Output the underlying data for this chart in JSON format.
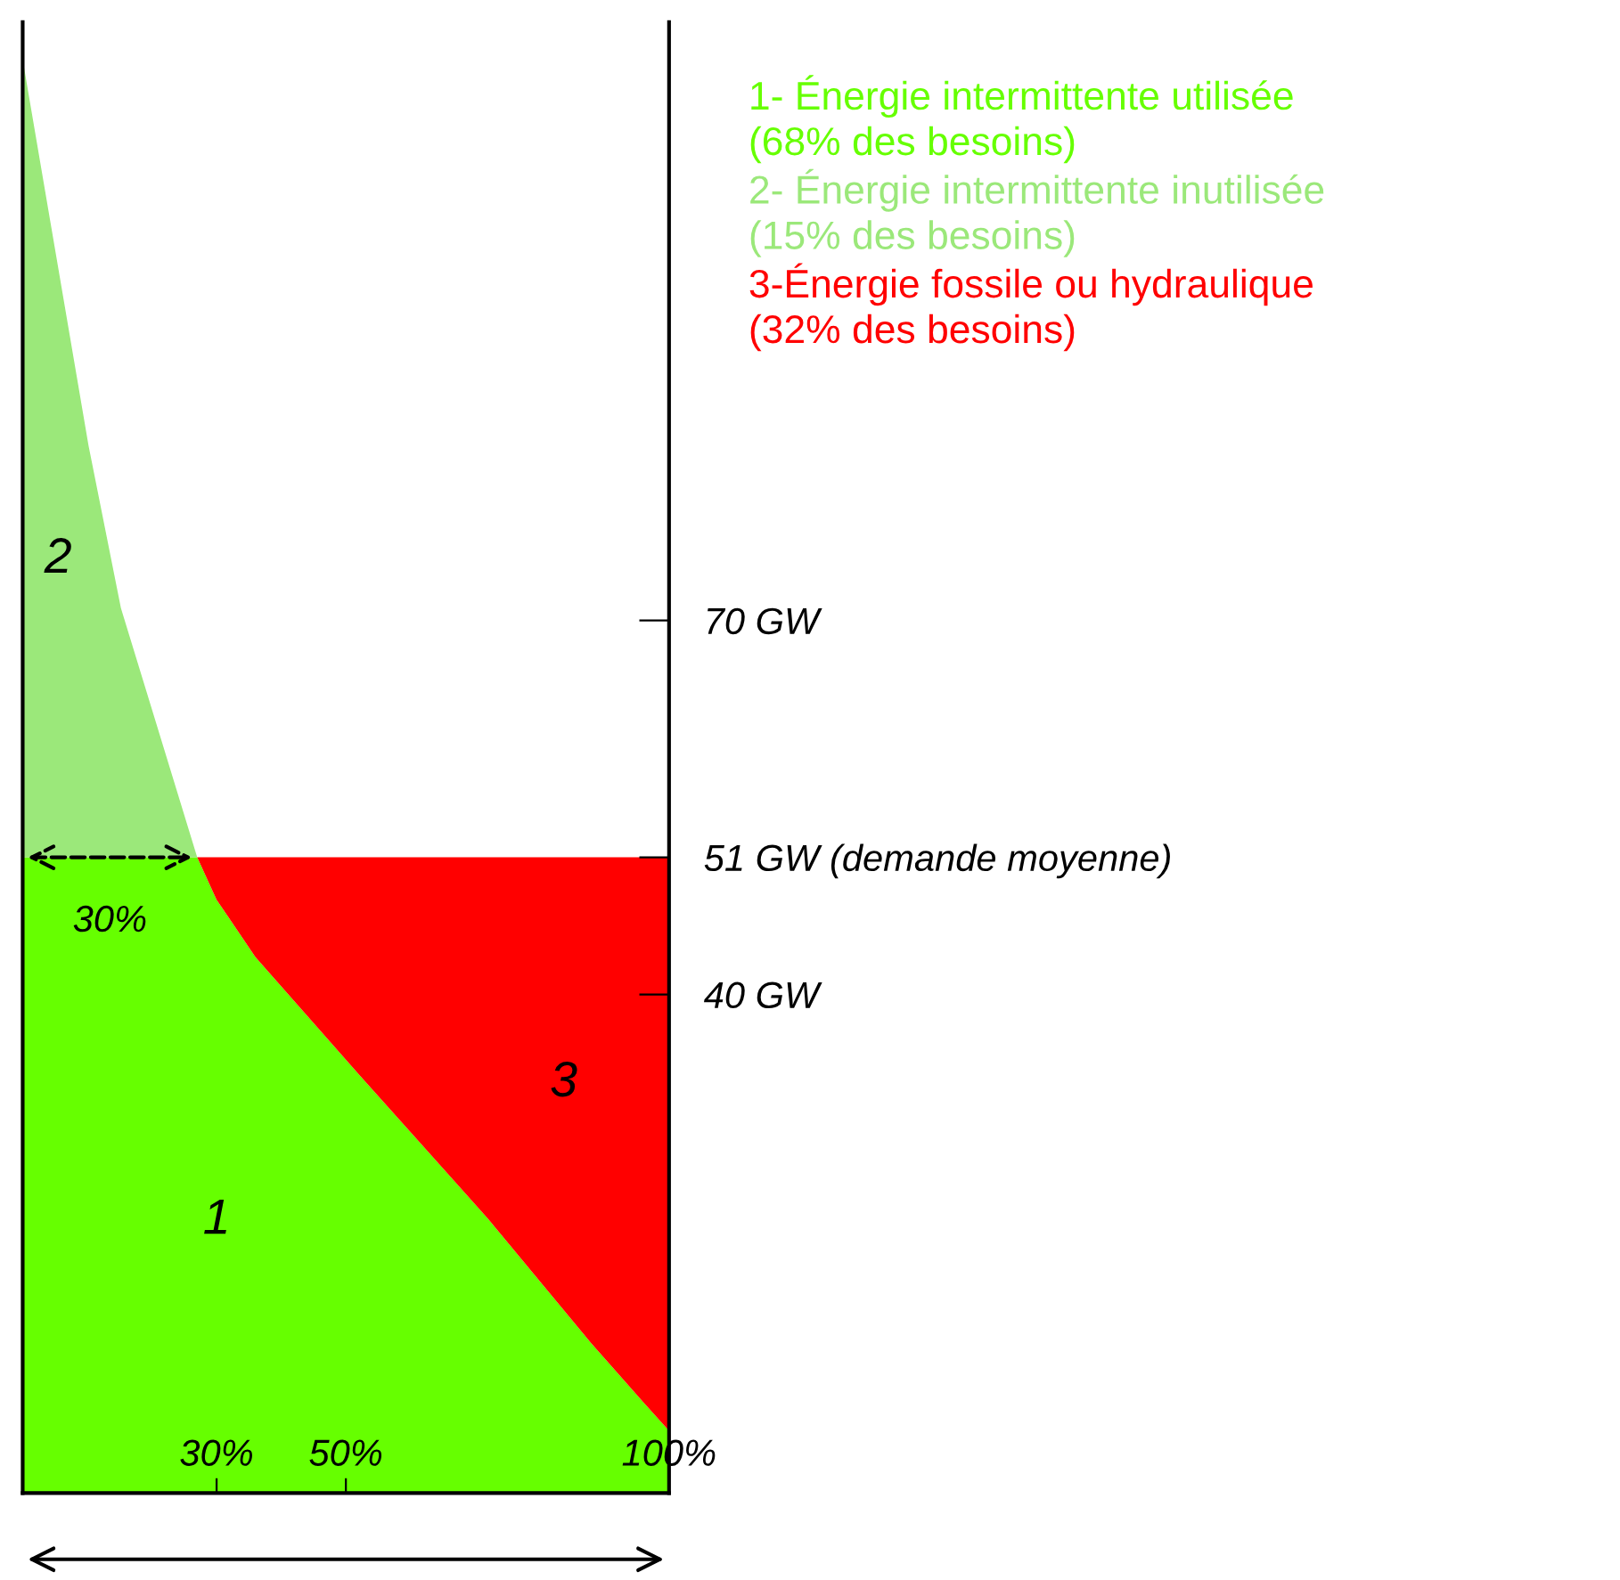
{
  "chart_data": {
    "type": "area",
    "stacked": true,
    "x": [
      0,
      10.2,
      15.2,
      27,
      30,
      36,
      52,
      72,
      88,
      96,
      100
    ],
    "series": [
      {
        "name": "1- Énergie intermittente utilisée\n(68% des besoins)",
        "color": "#66ff00",
        "values": [
          51,
          51,
          51,
          51,
          47.6,
          43,
          33.6,
          22,
          12,
          7.3,
          5
        ]
      },
      {
        "name": "2- Énergie intermittente inutilisée\n(15% des besoins)",
        "color": "#9be87a",
        "values": [
          64,
          33,
          20,
          0,
          null,
          null,
          null,
          null,
          null,
          null,
          null
        ]
      },
      {
        "name": "3-Énergie fossile ou hydraulique\n(32% des besoins)",
        "color": "#ff0000",
        "values": [
          null,
          null,
          null,
          0,
          3.4,
          8,
          17.4,
          29,
          39,
          43.7,
          46
        ]
      }
    ],
    "xlim": [
      0,
      100
    ],
    "xticks": [
      {
        "value": 30,
        "label": "30%"
      },
      {
        "value": 50,
        "label": "50%"
      },
      {
        "value": 100,
        "label": "100%"
      }
    ],
    "ylim": [
      0,
      118
    ],
    "yticks": [
      {
        "value": 40,
        "label": "40 GW"
      },
      {
        "value": 51,
        "label": "51 GW (demande moyenne)"
      },
      {
        "value": 70,
        "label": "70 GW"
      }
    ],
    "annotations": [
      {
        "text": "30%",
        "x": 27,
        "y": 51
      },
      "1",
      "2",
      "3"
    ],
    "legend": "top right",
    "grid": false
  }
}
